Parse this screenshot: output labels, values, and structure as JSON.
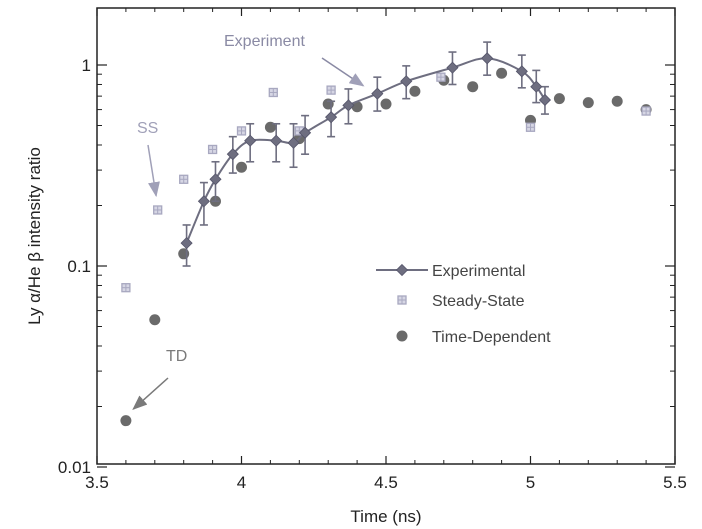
{
  "chart_data": {
    "type": "scatter",
    "xlabel": "Time (ns)",
    "ylabel": "Ly α/He β intensity ratio",
    "xlim": [
      3.5,
      5.5
    ],
    "ylim": [
      0.01,
      2
    ],
    "yscale": "log",
    "x_ticks": [
      3.5,
      4,
      4.5,
      5,
      5.5
    ],
    "x_tick_labels": [
      "3.5",
      "4",
      "4.5",
      "5",
      "5.5"
    ],
    "y_ticks": [
      0.01,
      0.1,
      1
    ],
    "y_tick_labels": [
      "0.01",
      "0.1",
      "1"
    ],
    "grid": false,
    "legend_position": "center-right",
    "colors": {
      "experimental": "#6e6e80",
      "steady_state": "#a8a8c0",
      "time_dependent": "#6a6a6a",
      "axes": "#222222"
    },
    "series": [
      {
        "name": "Experimental",
        "style": "line-diamond-errorbars",
        "x": [
          3.81,
          3.87,
          3.91,
          3.97,
          4.03,
          4.12,
          4.18,
          4.22,
          4.31,
          4.37,
          4.47,
          4.57,
          4.73,
          4.85,
          4.97,
          5.02,
          5.05
        ],
        "y": [
          0.13,
          0.21,
          0.27,
          0.36,
          0.42,
          0.42,
          0.41,
          0.46,
          0.55,
          0.63,
          0.72,
          0.83,
          0.97,
          1.08,
          0.93,
          0.78,
          0.67
        ],
        "y_low": [
          0.1,
          0.16,
          0.21,
          0.29,
          0.33,
          0.33,
          0.31,
          0.36,
          0.44,
          0.51,
          0.59,
          0.68,
          0.8,
          0.89,
          0.77,
          0.65,
          0.57
        ],
        "y_high": [
          0.16,
          0.26,
          0.33,
          0.44,
          0.51,
          0.51,
          0.51,
          0.56,
          0.66,
          0.76,
          0.87,
          0.99,
          1.16,
          1.3,
          1.12,
          0.94,
          0.78
        ]
      },
      {
        "name": "Steady-State",
        "style": "square-marker",
        "x": [
          3.6,
          3.71,
          3.8,
          3.9,
          4.0,
          4.11,
          4.2,
          4.31,
          4.69,
          5.0,
          5.4
        ],
        "y": [
          0.078,
          0.19,
          0.27,
          0.38,
          0.47,
          0.73,
          0.47,
          0.75,
          0.87,
          0.49,
          0.59
        ]
      },
      {
        "name": "Time-Dependent",
        "style": "circle-marker",
        "x": [
          3.6,
          3.7,
          3.8,
          3.91,
          4.0,
          4.1,
          4.2,
          4.3,
          4.4,
          4.5,
          4.6,
          4.7,
          4.8,
          4.9,
          5.0,
          5.1,
          5.2,
          5.3,
          5.4
        ],
        "y": [
          0.017,
          0.054,
          0.115,
          0.21,
          0.31,
          0.49,
          0.43,
          0.64,
          0.62,
          0.64,
          0.74,
          0.84,
          0.78,
          0.91,
          0.53,
          0.68,
          0.65,
          0.66,
          0.6
        ]
      }
    ],
    "annotations": [
      {
        "text": "Experiment",
        "points_to": {
          "x": 4.45,
          "y": 0.74
        }
      },
      {
        "text": "SS",
        "points_to": {
          "x": 3.71,
          "y": 0.2
        }
      },
      {
        "text": "TD",
        "points_to": {
          "x": 3.6,
          "y": 0.018
        }
      }
    ]
  }
}
